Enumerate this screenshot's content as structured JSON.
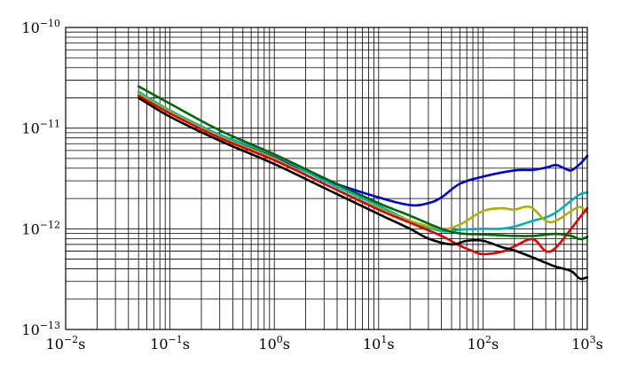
{
  "chart_data": {
    "type": "line",
    "title": "",
    "xlabel": "",
    "ylabel": "",
    "x_scale": "log",
    "y_scale": "log",
    "xlim": [
      0.01,
      1000
    ],
    "ylim": [
      1e-13,
      1e-10
    ],
    "grid": true,
    "legend": "none",
    "x_ticks": [
      {
        "value": 0.01,
        "base": "10",
        "exp": "−2",
        "unit": "s"
      },
      {
        "value": 0.1,
        "base": "10",
        "exp": "−1",
        "unit": "s"
      },
      {
        "value": 1,
        "base": "10",
        "exp": "0",
        "unit": "s"
      },
      {
        "value": 10,
        "base": "10",
        "exp": "1",
        "unit": "s"
      },
      {
        "value": 100,
        "base": "10",
        "exp": "2",
        "unit": "s"
      },
      {
        "value": 1000,
        "base": "10",
        "exp": "3",
        "unit": "s"
      }
    ],
    "y_ticks": [
      {
        "value": 1e-13,
        "base": "10",
        "exp": "−13"
      },
      {
        "value": 1e-12,
        "base": "10",
        "exp": "−12"
      },
      {
        "value": 1e-11,
        "base": "10",
        "exp": "−11"
      },
      {
        "value": 1e-10,
        "base": "10",
        "exp": "−10"
      }
    ],
    "series": [
      {
        "color": "#0000cc",
        "points": [
          [
            0.05,
            2.2e-11
          ],
          [
            0.1,
            1.45e-11
          ],
          [
            0.3,
            8.5e-12
          ],
          [
            1,
            5.2e-12
          ],
          [
            3,
            3.1e-12
          ],
          [
            10,
            2.05e-12
          ],
          [
            20,
            1.72e-12
          ],
          [
            30,
            1.8e-12
          ],
          [
            40,
            2.05e-12
          ],
          [
            60,
            2.8e-12
          ],
          [
            100,
            3.3e-12
          ],
          [
            200,
            3.8e-12
          ],
          [
            300,
            3.85e-12
          ],
          [
            400,
            4.05e-12
          ],
          [
            500,
            4.3e-12
          ],
          [
            600,
            4e-12
          ],
          [
            700,
            3.8e-12
          ],
          [
            850,
            4.4e-12
          ],
          [
            1000,
            5.3e-12
          ]
        ]
      },
      {
        "color": "#00b0b0",
        "points": [
          [
            0.05,
            2.3e-11
          ],
          [
            0.1,
            1.5e-11
          ],
          [
            0.3,
            8.6e-12
          ],
          [
            1,
            5.4e-12
          ],
          [
            3,
            3e-12
          ],
          [
            10,
            1.7e-12
          ],
          [
            20,
            1.2e-12
          ],
          [
            40,
            9.5e-13
          ],
          [
            60,
            9.8e-13
          ],
          [
            100,
            1e-12
          ],
          [
            150,
            1e-12
          ],
          [
            200,
            1.05e-12
          ],
          [
            300,
            1.2e-12
          ],
          [
            400,
            1.3e-12
          ],
          [
            500,
            1.45e-12
          ],
          [
            700,
            1.9e-12
          ],
          [
            850,
            2.2e-12
          ],
          [
            1000,
            2.3e-12
          ]
        ]
      },
      {
        "color": "#b0b000",
        "points": [
          [
            0.05,
            2.2e-11
          ],
          [
            0.1,
            1.45e-11
          ],
          [
            0.3,
            8.2e-12
          ],
          [
            1,
            5e-12
          ],
          [
            3,
            2.8e-12
          ],
          [
            10,
            1.6e-12
          ],
          [
            20,
            1.2e-12
          ],
          [
            40,
            1e-12
          ],
          [
            60,
            1.1e-12
          ],
          [
            100,
            1.5e-12
          ],
          [
            150,
            1.6e-12
          ],
          [
            200,
            1.55e-12
          ],
          [
            250,
            1.65e-12
          ],
          [
            300,
            1.6e-12
          ],
          [
            400,
            1.2e-12
          ],
          [
            500,
            1.2e-12
          ],
          [
            700,
            1.5e-12
          ],
          [
            850,
            1.65e-12
          ],
          [
            1000,
            1.45e-12
          ]
        ]
      },
      {
        "color": "#dd0000",
        "points": [
          [
            0.05,
            2.1e-11
          ],
          [
            0.1,
            1.4e-11
          ],
          [
            0.3,
            8e-12
          ],
          [
            1,
            4.8e-12
          ],
          [
            3,
            2.8e-12
          ],
          [
            10,
            1.55e-12
          ],
          [
            20,
            1.15e-12
          ],
          [
            40,
            8.5e-13
          ],
          [
            60,
            6.8e-13
          ],
          [
            80,
            6e-13
          ],
          [
            100,
            5.6e-13
          ],
          [
            150,
            5.9e-13
          ],
          [
            200,
            6.7e-13
          ],
          [
            300,
            7.9e-13
          ],
          [
            400,
            6e-13
          ],
          [
            500,
            6.5e-13
          ],
          [
            700,
            1e-12
          ],
          [
            850,
            1.3e-12
          ],
          [
            1000,
            1.6e-12
          ]
        ]
      },
      {
        "color": "#000000",
        "points": [
          [
            0.05,
            2e-11
          ],
          [
            0.1,
            1.3e-11
          ],
          [
            0.3,
            7.5e-12
          ],
          [
            1,
            4.4e-12
          ],
          [
            3,
            2.55e-12
          ],
          [
            10,
            1.4e-12
          ],
          [
            20,
            1e-12
          ],
          [
            30,
            8e-13
          ],
          [
            50,
            7e-13
          ],
          [
            70,
            7.6e-13
          ],
          [
            100,
            7.6e-13
          ],
          [
            150,
            6.6e-13
          ],
          [
            200,
            6.1e-13
          ],
          [
            300,
            5.2e-13
          ],
          [
            400,
            4.6e-13
          ],
          [
            500,
            4.2e-13
          ],
          [
            700,
            3.8e-13
          ],
          [
            850,
            3.2e-13
          ],
          [
            1000,
            3.3e-13
          ]
        ]
      },
      {
        "color": "#006600",
        "points": [
          [
            0.05,
            2.6e-11
          ],
          [
            0.1,
            1.75e-11
          ],
          [
            0.3,
            9.5e-12
          ],
          [
            1,
            5.5e-12
          ],
          [
            3,
            3.2e-12
          ],
          [
            10,
            1.8e-12
          ],
          [
            20,
            1.35e-12
          ],
          [
            40,
            1e-12
          ],
          [
            60,
            9e-13
          ],
          [
            100,
            8.8e-13
          ],
          [
            200,
            8.5e-13
          ],
          [
            300,
            8.5e-13
          ],
          [
            500,
            8.9e-13
          ],
          [
            700,
            8.5e-13
          ],
          [
            850,
            7.9e-13
          ],
          [
            1000,
            8.3e-13
          ]
        ]
      }
    ]
  }
}
